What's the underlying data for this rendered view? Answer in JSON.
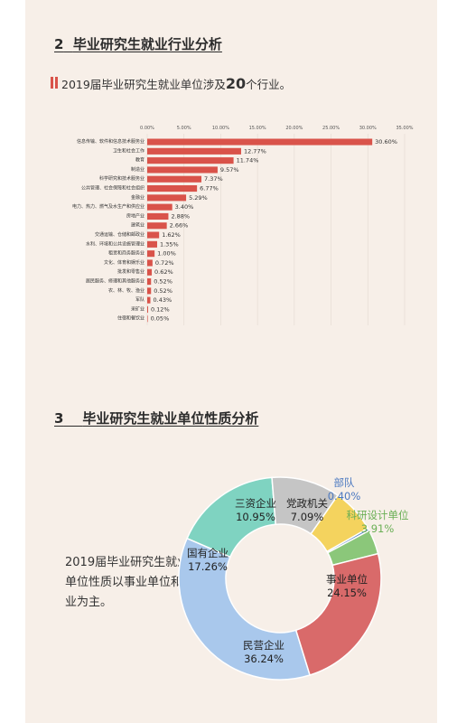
{
  "section2": {
    "number": "2",
    "title": "毕业研究生就业行业分析",
    "subtitle_pre": "2019届毕业研究生就业单位涉及",
    "subtitle_num": "20",
    "subtitle_post": "个行业。"
  },
  "section3": {
    "number": "3",
    "title": "毕业研究生就业单位性质分析",
    "note": "2019届毕业研究生就业单位性质以事业单位和企业为主。"
  },
  "chart_data": [
    {
      "type": "bar",
      "orientation": "horizontal",
      "xlim": [
        0,
        35
      ],
      "x_ticks": [
        "0.00%",
        "5.00%",
        "10.00%",
        "15.00%",
        "20.00%",
        "25.00%",
        "30.00%",
        "35.00%"
      ],
      "categories": [
        "信息传输、软件和信息技术服务业",
        "卫生和社会工作",
        "教育",
        "制造业",
        "科学研究和技术服务业",
        "公共管理、社会保障和社会组织",
        "金融业",
        "电力、热力、燃气及水生产和供应业",
        "房地产业",
        "建筑业",
        "交通运输、仓储和邮政业",
        "水利、环境和公共设施管理业",
        "租赁和商务服务业",
        "文化、体育和娱乐业",
        "批发和零售业",
        "居民服务、修理和其他服务业",
        "农、林、牧、渔业",
        "军队",
        "采矿业",
        "住宿和餐饮业"
      ],
      "values": [
        30.6,
        12.77,
        11.74,
        9.57,
        7.37,
        6.77,
        5.29,
        3.4,
        2.88,
        2.66,
        1.62,
        1.35,
        1.0,
        0.72,
        0.62,
        0.52,
        0.52,
        0.43,
        0.12,
        0.05
      ],
      "value_labels": [
        "30.60%",
        "12.77%",
        "11.74%",
        "9.57%",
        "7.37%",
        "6.77%",
        "5.29%",
        "3.40%",
        "2.88%",
        "2.66%",
        "1.62%",
        "1.35%",
        "1.00%",
        "0.72%",
        "0.62%",
        "0.52%",
        "0.52%",
        "0.43%",
        "0.12%",
        "0.05%"
      ],
      "grid": true,
      "colors": {
        "bar": "#d9534a"
      }
    },
    {
      "type": "pie",
      "donut": true,
      "slices": [
        {
          "label": "民营企业",
          "value": 36.24,
          "display": "36.24%",
          "color": "#a9c8ec"
        },
        {
          "label": "国有企业",
          "value": 17.26,
          "display": "17.26%",
          "color": "#7fd3c1"
        },
        {
          "label": "三资企业",
          "value": 10.95,
          "display": "10.95%",
          "color": "#c5c5c5"
        },
        {
          "label": "党政机关",
          "value": 7.09,
          "display": "7.09%",
          "color": "#f4d35e"
        },
        {
          "label": "部队",
          "value": 0.4,
          "display": "0.40%",
          "color": "#5b87c4"
        },
        {
          "label": "科研设计单位",
          "value": 3.91,
          "display": "3.91%",
          "color": "#8bc77a"
        },
        {
          "label": "事业单位",
          "value": 24.15,
          "display": "24.15%",
          "color": "#d96a6a"
        }
      ]
    }
  ]
}
